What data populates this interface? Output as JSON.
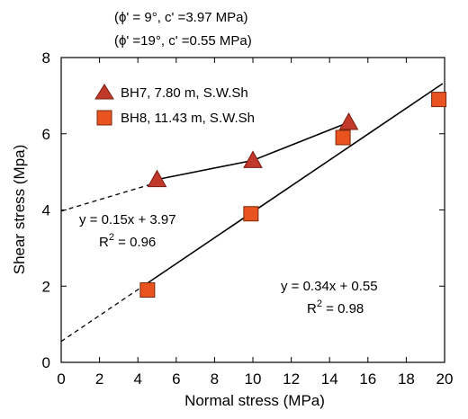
{
  "chart_data": {
    "type": "scatter",
    "title": "",
    "header_lines": [
      "(ϕ' = 9°,  c' =3.97 MPa)",
      "(ϕ' =19°, c' =0.55 MPa)"
    ],
    "xlabel": "Normal stress (MPa)",
    "ylabel": "Shear stress (Mpa)",
    "xlim": [
      0,
      20
    ],
    "ylim": [
      0,
      8
    ],
    "x_ticks": [
      "0",
      "2",
      "4",
      "6",
      "8",
      "10",
      "12",
      "14",
      "16",
      "18",
      "20"
    ],
    "y_ticks": [
      "0",
      "2",
      "4",
      "6",
      "8"
    ],
    "grid": false,
    "legend_position": "top-left",
    "series": [
      {
        "name": "BH7, 7.80 m, S.W.Sh",
        "marker": "triangle",
        "color": "#c0392b",
        "points": [
          {
            "x": 5.0,
            "y": 4.8
          },
          {
            "x": 10.0,
            "y": 5.3
          },
          {
            "x": 15.0,
            "y": 6.3
          }
        ],
        "fit_line": {
          "slope": 0.15,
          "intercept": 3.97,
          "x_from": 5.0,
          "x_to": 15.0,
          "extrapolate_from": 0
        }
      },
      {
        "name": "BH8, 11.43 m, S.W.Sh",
        "marker": "square",
        "color": "#e8531f",
        "points": [
          {
            "x": 4.5,
            "y": 1.9
          },
          {
            "x": 9.9,
            "y": 3.9
          },
          {
            "x": 14.7,
            "y": 5.9
          },
          {
            "x": 19.7,
            "y": 6.9
          }
        ],
        "fit_line": {
          "slope": 0.34,
          "intercept": 0.55,
          "x_from": 4.5,
          "x_to": 19.9,
          "extrapolate_from": 0
        }
      }
    ],
    "annotations": [
      {
        "id": "bh7-eq",
        "equation": "y = 0.15x + 3.97",
        "r2_prefix": "R",
        "r2_exp": "2",
        "r2_value": " = 0.96"
      },
      {
        "id": "bh8-eq",
        "equation": "y = 0.34x + 0.55",
        "r2_prefix": "R",
        "r2_exp": "2",
        "r2_value": " = 0.98"
      }
    ]
  }
}
